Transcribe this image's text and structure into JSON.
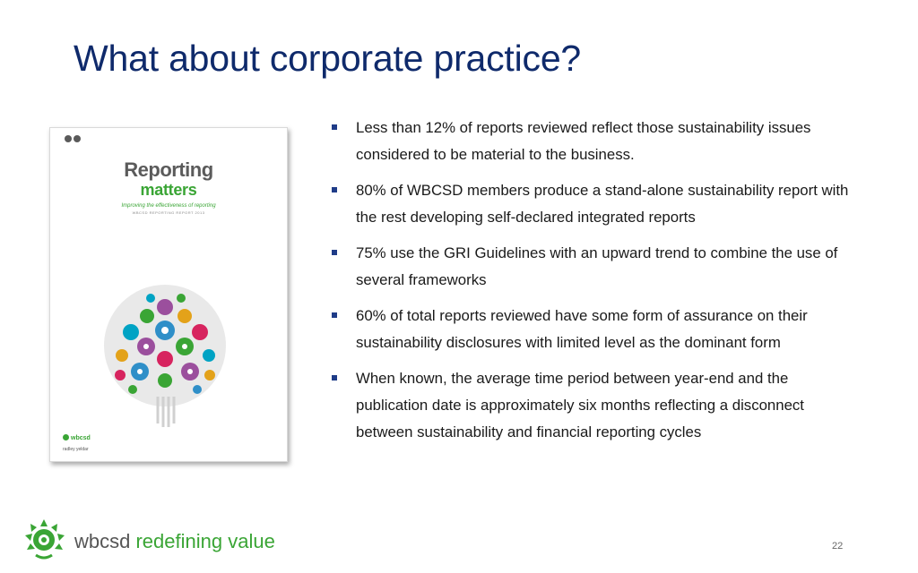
{
  "slide": {
    "title": "What about corporate practice?",
    "page_number": "22"
  },
  "cover": {
    "title_line1": "Reporting",
    "title_line2": "matters",
    "subtitle": "Improving the effectiveness of reporting",
    "tagline": "WBCSD REPORTING REPORT 2013",
    "brand": "wbcsd",
    "partner": "radley yeldar"
  },
  "bullets": [
    "Less than 12% of reports reviewed reflect those sustainability issues considered to be material to the business.",
    "80% of WBCSD members produce a stand-alone sustainability report with the rest developing self-declared integrated reports",
    "75% use the GRI Guidelines with an upward trend to combine the use of several frameworks",
    "60% of total reports reviewed have some form of assurance on their sustainability disclosures with limited level as the dominant form",
    "When known, the average time period between year-end and the publication date is approximately six months reflecting a disconnect between sustainability and financial reporting cycles"
  ],
  "footer": {
    "logo_word": "wbcsd",
    "logo_tagline": "redefining value"
  },
  "colors": {
    "title": "#0f2a6b",
    "bullet_marker": "#1f3c88",
    "brand_green": "#3aa535",
    "brand_gray": "#555555"
  },
  "icons": [
    "report-cover-image",
    "wbcsd-logo-icon"
  ]
}
